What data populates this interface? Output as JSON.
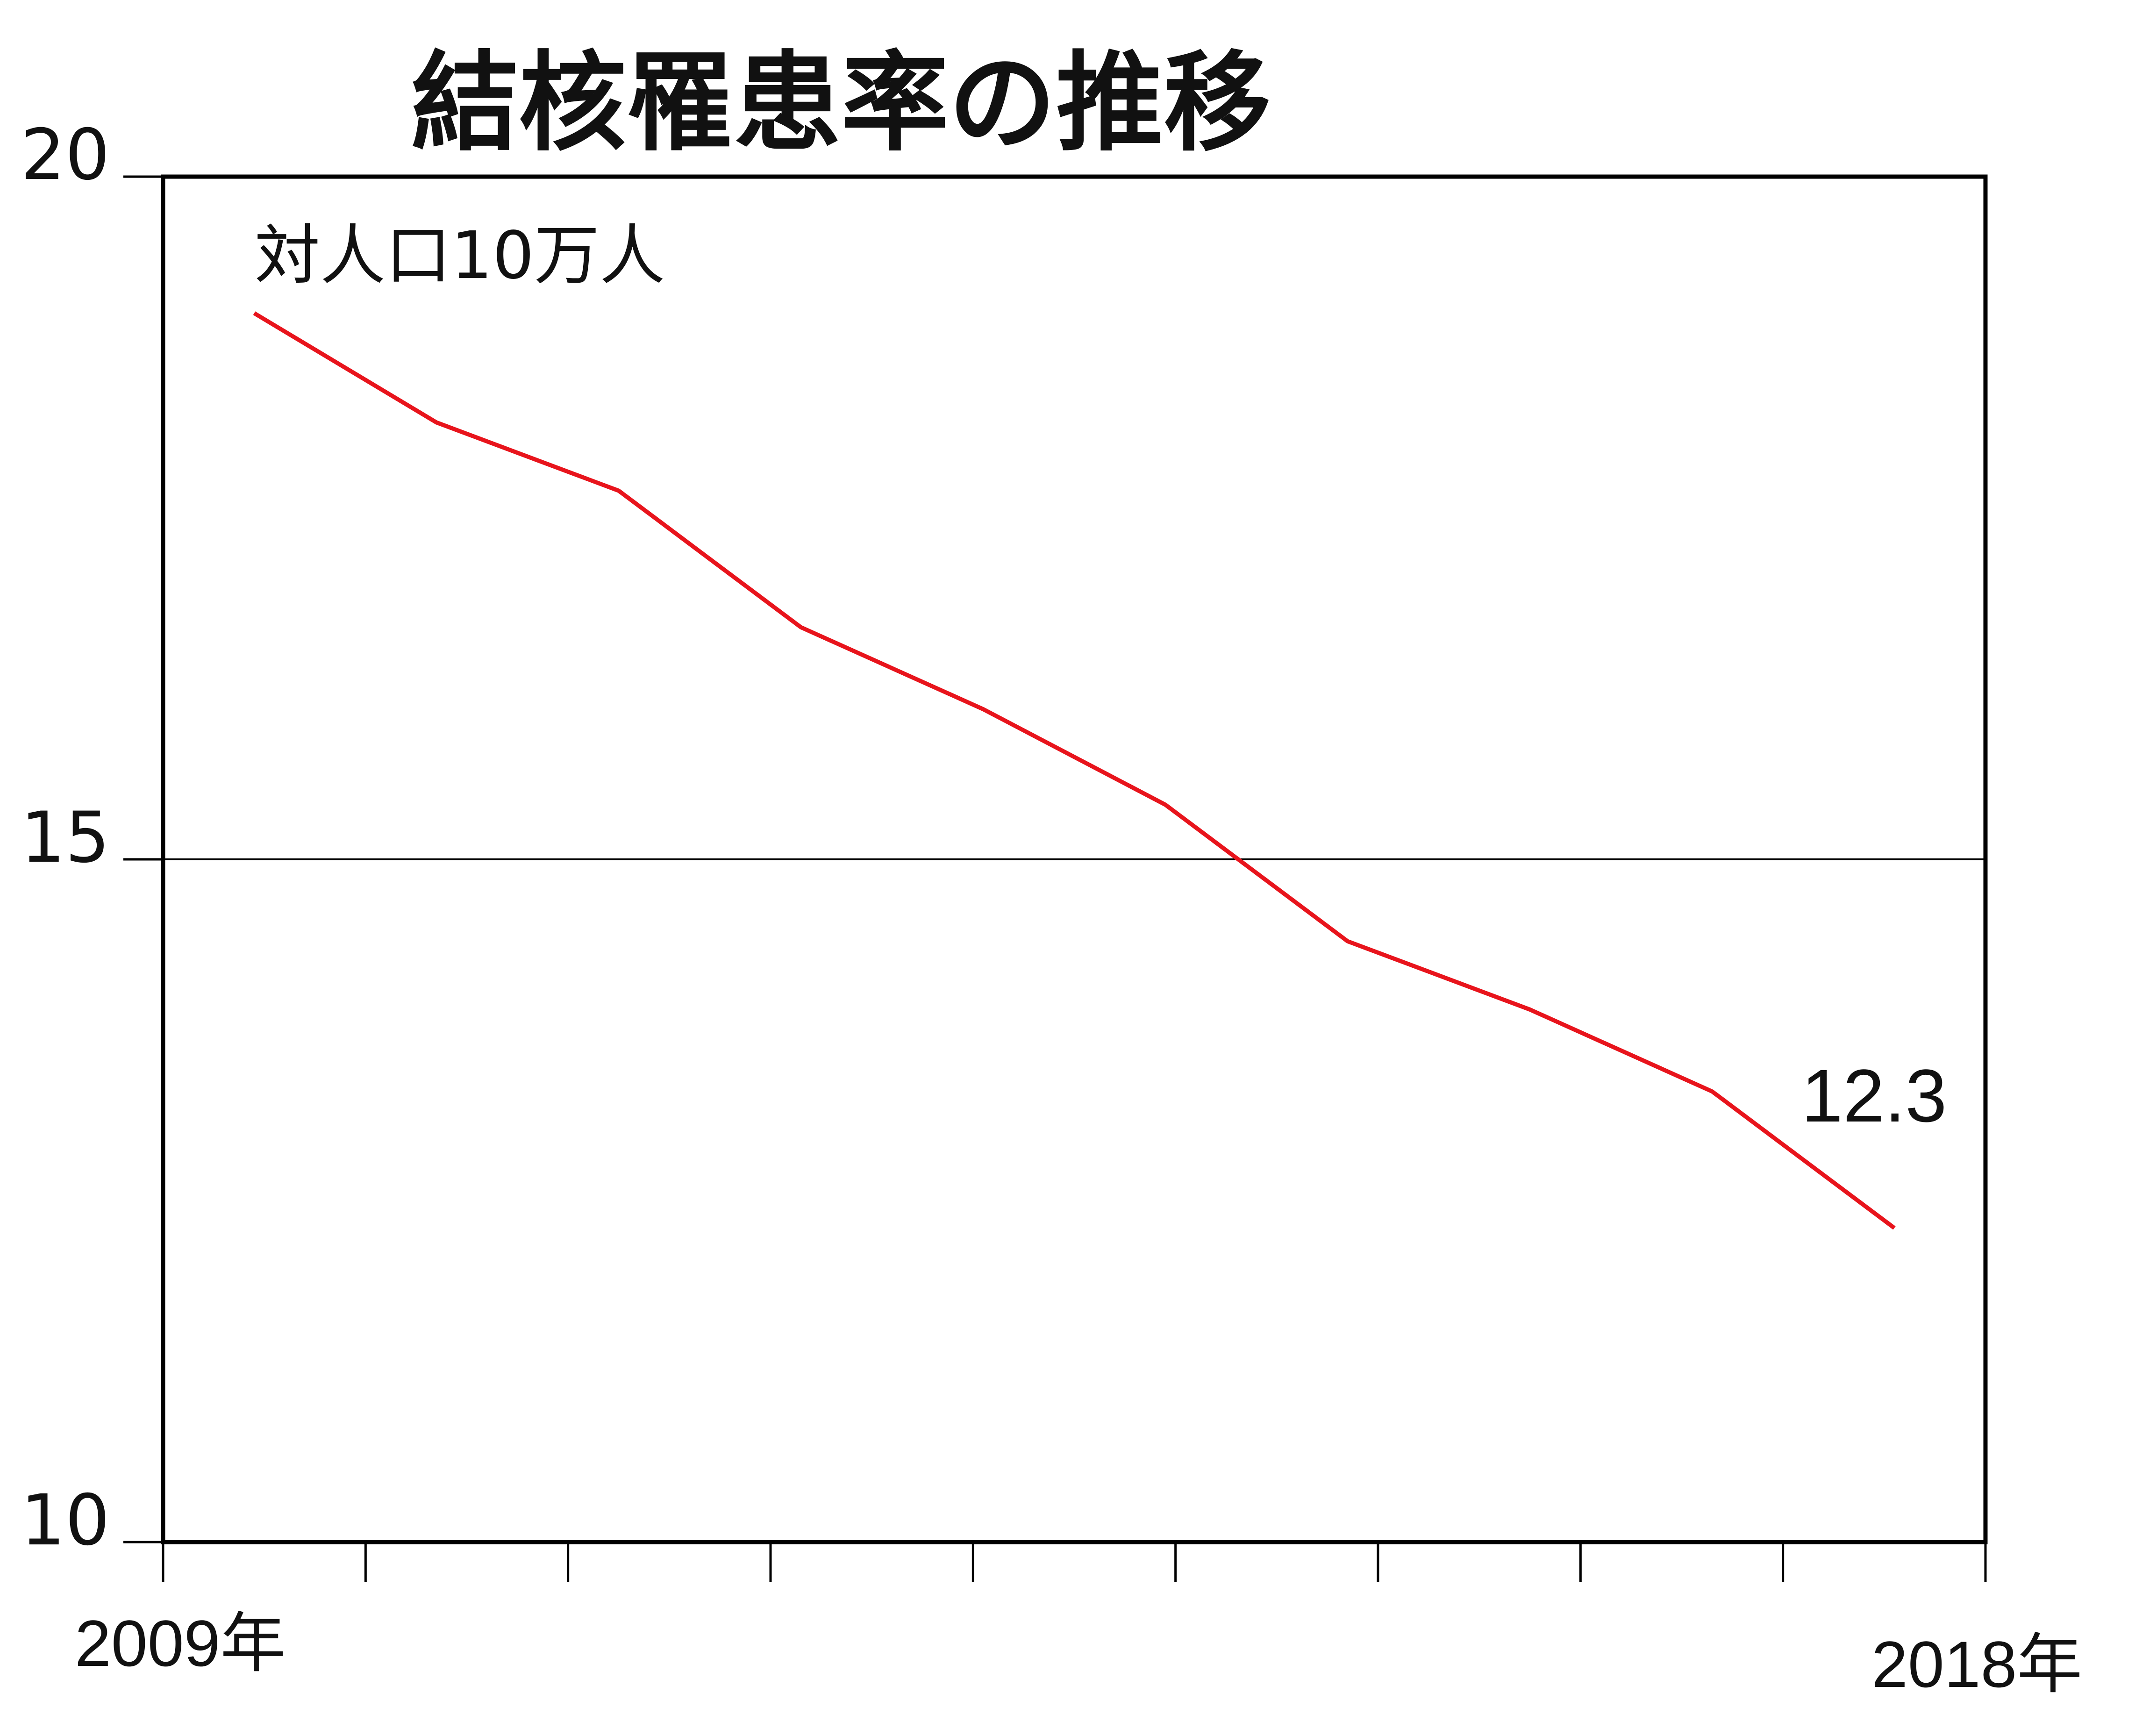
{
  "chart_data": {
    "type": "line",
    "title": "結核罹患率の推移",
    "unit_label": "対人口10万人",
    "xlabel": "",
    "ylabel": "",
    "x": [
      2009,
      2010,
      2011,
      2012,
      2013,
      2014,
      2015,
      2016,
      2017,
      2018
    ],
    "x_tick_labels": [
      "2009年",
      "2018年"
    ],
    "ylim": [
      10,
      20
    ],
    "yticks": [
      10,
      15,
      20
    ],
    "series": [
      {
        "name": "",
        "color": "#e8141c",
        "values": [
          19.0,
          18.2,
          17.7,
          16.7,
          16.1,
          15.4,
          14.4,
          13.9,
          13.3,
          12.3
        ]
      }
    ],
    "annotations": [
      {
        "text": "12.3",
        "x": 2018,
        "y": 12.3
      }
    ],
    "gridlines": [
      15
    ],
    "legend": "none"
  }
}
